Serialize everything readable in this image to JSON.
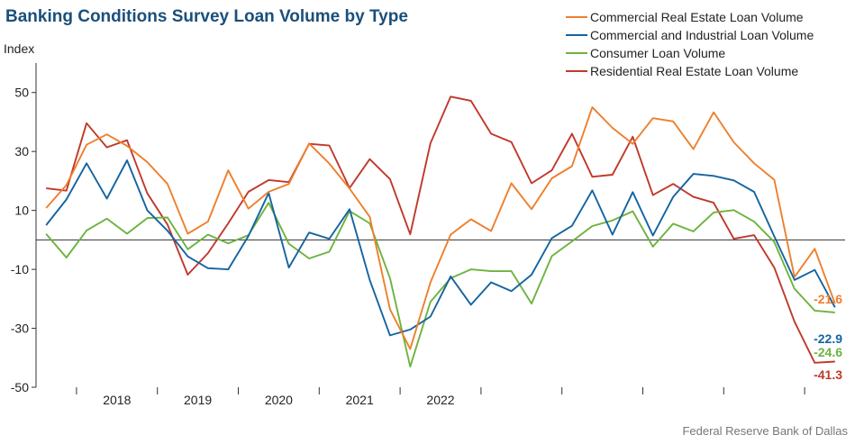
{
  "chart_data": {
    "type": "line",
    "title": "Banking Conditions Survey Loan Volume by Type",
    "ylabel": "Index",
    "source": "Federal Reserve Bank of Dallas",
    "ylim": [
      -50,
      60
    ],
    "yticks": [
      50,
      30,
      10,
      -10,
      -30,
      -50
    ],
    "year_ticks": [
      "2018",
      "2019",
      "2020",
      "2021",
      "2022"
    ],
    "x_start": 2017.5,
    "x_step": 0.25,
    "zero_line": true,
    "legend_position": "top-right",
    "series": [
      {
        "name": "Commercial Real Estate Loan Volume",
        "color": "#ee7f2d",
        "end_label": "-21.6",
        "values": [
          10.8,
          18.6,
          32.3,
          35.8,
          31.9,
          26.4,
          19.0,
          2.1,
          6.2,
          23.6,
          10.6,
          16.3,
          19.0,
          32.7,
          25.9,
          17.4,
          7.8,
          -23.6,
          -37.0,
          -14.4,
          1.8,
          7.0,
          3.0,
          19.2,
          10.4,
          20.9,
          25.0,
          45.0,
          38.0,
          32.6,
          41.3,
          40.2,
          30.8,
          43.3,
          33.1,
          26.0,
          20.4,
          -12.6,
          -3.0,
          -21.6
        ]
      },
      {
        "name": "Commercial and Industrial Loan Volume",
        "color": "#1464a0",
        "end_label": "-22.9",
        "values": [
          5.0,
          13.7,
          26.0,
          14.0,
          27.0,
          10.0,
          3.1,
          -5.6,
          -9.6,
          -10.0,
          1.3,
          15.9,
          -9.4,
          2.5,
          0.4,
          10.4,
          -13.6,
          -32.4,
          -30.4,
          -26.0,
          -12.4,
          -22.0,
          -14.4,
          -17.4,
          -11.8,
          0.6,
          4.8,
          16.8,
          1.8,
          16.2,
          1.5,
          14.6,
          22.4,
          21.7,
          20.2,
          16.3,
          1.2,
          -13.6,
          -10.2,
          -22.9
        ]
      },
      {
        "name": "Consumer Loan Volume",
        "color": "#6db33f",
        "end_label": "-24.6",
        "values": [
          2.0,
          -6.0,
          3.2,
          7.2,
          2.1,
          7.4,
          7.6,
          -3.2,
          1.8,
          -1.2,
          1.6,
          12.6,
          -1.3,
          -6.3,
          -4.0,
          9.8,
          5.6,
          -13.0,
          -43.0,
          -21.0,
          -13.0,
          -10.0,
          -10.6,
          -10.6,
          -21.6,
          -5.5,
          -0.5,
          4.7,
          6.6,
          9.7,
          -2.3,
          5.5,
          2.9,
          9.3,
          10.1,
          6.2,
          -0.7,
          -16.6,
          -24.0,
          -24.6
        ]
      },
      {
        "name": "Residential Real Estate Loan Volume",
        "color": "#c0392b",
        "end_label": "-41.3",
        "values": [
          17.5,
          16.7,
          39.6,
          31.4,
          33.8,
          15.8,
          5.2,
          -11.8,
          -4.5,
          5.6,
          16.3,
          20.3,
          19.6,
          32.6,
          32.0,
          17.6,
          27.4,
          20.6,
          1.9,
          32.8,
          48.6,
          47.2,
          36.0,
          33.2,
          19.2,
          23.6,
          36.0,
          21.4,
          22.1,
          35.0,
          15.2,
          19.0,
          14.6,
          12.6,
          0.4,
          1.6,
          -9.4,
          -27.8,
          -41.7,
          -41.3
        ]
      }
    ]
  }
}
